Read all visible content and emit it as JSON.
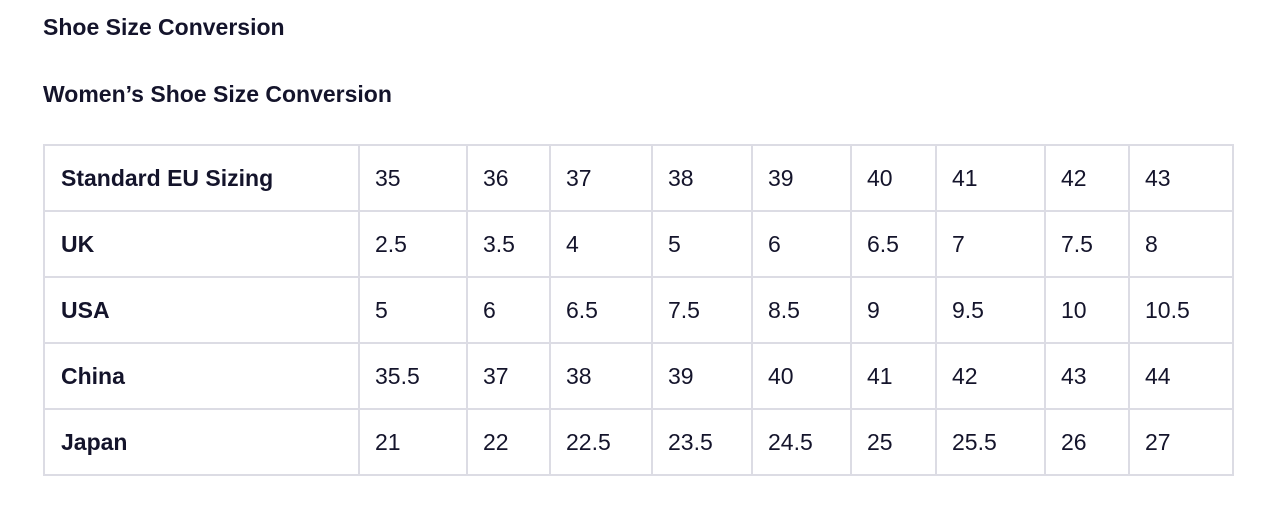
{
  "header": {
    "title": "Shoe Size Conversion",
    "subtitle": "Women’s Shoe Size Conversion"
  },
  "table": {
    "rows": [
      [
        "Standard EU Sizing",
        "35",
        "36",
        "37",
        "38",
        "39",
        "40",
        "41",
        "42",
        "43"
      ],
      [
        "UK",
        "2.5",
        "3.5",
        "4",
        "5",
        "6",
        "6.5",
        "7",
        "7.5",
        "8"
      ],
      [
        "USA",
        "5",
        "6",
        "6.5",
        "7.5",
        "8.5",
        "9",
        "9.5",
        "10",
        "10.5"
      ],
      [
        "China",
        "35.5",
        "37",
        "38",
        "39",
        "40",
        "41",
        "42",
        "43",
        "44"
      ],
      [
        "Japan",
        "21",
        "22",
        "22.5",
        "23.5",
        "24.5",
        "25",
        "25.5",
        "26",
        "27"
      ]
    ]
  }
}
